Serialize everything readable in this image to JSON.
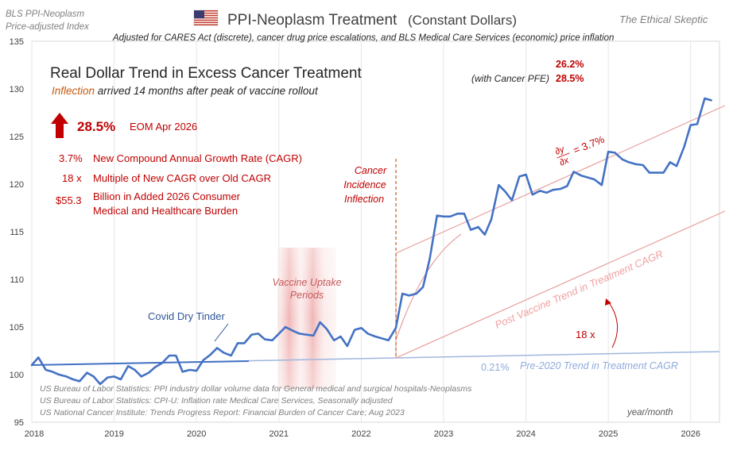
{
  "header": {
    "source_line1": "BLS PPI-Neoplasm",
    "source_line2": "Price-adjusted Index",
    "title": "PPI-Neoplasm Treatment",
    "title_suffix": "(Constant Dollars)",
    "brand": "The Ethical Skeptic",
    "subtitle": "Adjusted for CARES Act (discrete), cancer drug price escalations, and BLS Medical Care Services (economic) price inflation",
    "flag_icon": "us-flag-icon"
  },
  "panel": {
    "headline": "Real Dollar Trend in Excess Cancer Treatment",
    "inflection_word": "Inflection",
    "inflection_rest": " arrived 14 months after peak of vaccine rollout",
    "big_value": "28.5%",
    "big_label": "EOM Apr 2026",
    "stats": [
      {
        "value": "3.7%",
        "label": "New Compound Annual Growth Rate (CAGR)"
      },
      {
        "value": "18 x",
        "label": "Multiple of New CAGR over Old CAGR"
      },
      {
        "value": "$55.3",
        "label": "Billion in Added 2026 Consumer"
      }
    ],
    "stats_cont": "Medical and Healthcare Burden",
    "top_right_value1": "26.2%",
    "top_right_label2": "(with Cancer PFE)",
    "top_right_value2": "28.5%"
  },
  "colors": {
    "series": "#4472c4",
    "accent_red": "#c00000",
    "trend_light": "#e8a0a0",
    "old_trend": "#9fb7de",
    "inflection": "#c55a11"
  },
  "chart_data": {
    "type": "line",
    "title": "PPI-Neoplasm Treatment (Constant Dollars)",
    "xlabel": "year/month",
    "ylabel": "",
    "xlim": [
      2018.0,
      2026.35
    ],
    "ylim": [
      95,
      135
    ],
    "yticks": [
      95,
      100,
      105,
      110,
      115,
      120,
      125,
      130,
      135
    ],
    "xticks": [
      "2018",
      "2019",
      "2020",
      "2021",
      "2022",
      "2023",
      "2024",
      "2025",
      "2026"
    ],
    "grid": "vertical",
    "series": [
      {
        "x": [
          2018.0,
          2018.08,
          2018.17,
          2018.25,
          2018.33,
          2018.42,
          2018.5,
          2018.58,
          2018.67,
          2018.75,
          2018.83,
          2018.92,
          2019.0,
          2019.08,
          2019.17,
          2019.25,
          2019.33,
          2019.42,
          2019.5,
          2019.58,
          2019.67,
          2019.75,
          2019.83,
          2019.92,
          2020.0,
          2020.08,
          2020.17,
          2020.25,
          2020.33,
          2020.42,
          2020.5,
          2020.58,
          2020.67,
          2020.75,
          2020.83,
          2020.92,
          2021.0,
          2021.08,
          2021.17,
          2021.25,
          2021.33,
          2021.42,
          2021.5,
          2021.58,
          2021.67,
          2021.75,
          2021.83,
          2021.92,
          2022.0,
          2022.08,
          2022.17,
          2022.25,
          2022.33,
          2022.42,
          2022.5,
          2022.58,
          2022.67,
          2022.75,
          2022.83,
          2022.92,
          2023.0,
          2023.08,
          2023.17,
          2023.25,
          2023.33,
          2023.42,
          2023.5,
          2023.58,
          2023.67,
          2023.75,
          2023.83,
          2023.92,
          2024.0,
          2024.08,
          2024.17,
          2024.25,
          2024.33,
          2024.42,
          2024.5,
          2024.58,
          2024.67,
          2024.75,
          2024.83,
          2024.92,
          2025.0,
          2025.08,
          2025.17,
          2025.25,
          2025.33,
          2025.42,
          2025.5,
          2025.58,
          2025.67,
          2025.75,
          2025.83,
          2025.92,
          2026.0,
          2026.08,
          2026.17,
          2026.25
        ],
        "values": [
          101.0,
          101.8,
          100.5,
          100.3,
          100.0,
          99.8,
          99.5,
          99.3,
          100.2,
          99.8,
          99.0,
          99.7,
          99.8,
          99.5,
          100.9,
          100.5,
          99.8,
          100.2,
          100.8,
          101.2,
          102.0,
          102.0,
          100.3,
          100.5,
          100.4,
          101.5,
          102.1,
          102.8,
          102.3,
          102.0,
          103.3,
          103.3,
          104.2,
          104.3,
          103.7,
          103.6,
          104.3,
          105.0,
          104.6,
          104.3,
          104.2,
          104.1,
          105.5,
          104.8,
          103.6,
          104.0,
          103.0,
          104.7,
          104.9,
          104.3,
          104.0,
          103.8,
          103.6,
          104.9,
          108.5,
          108.3,
          108.5,
          109.2,
          112.1,
          116.7,
          116.6,
          116.6,
          116.9,
          116.9,
          115.2,
          115.5,
          114.7,
          116.3,
          119.9,
          119.2,
          118.3,
          120.8,
          121.0,
          118.9,
          119.3,
          119.1,
          119.4,
          119.5,
          119.8,
          121.3,
          120.9,
          120.7,
          120.5,
          119.9,
          123.4,
          123.3,
          122.6,
          122.3,
          122.1,
          122.0,
          121.2,
          121.2,
          121.2,
          122.3,
          121.9,
          123.9,
          126.2,
          126.3,
          129.0,
          128.8
        ]
      }
    ],
    "annotations": [
      "Covid Dry Tinder",
      "Vaccine Uptake Periods",
      "Cancer Incidence Inflection",
      "Post Vaccine Trend in Treatment CAGR",
      "0.21%",
      "Pre-2020 Trend in Treatment CAGR",
      "18 x",
      "∂y/∂x = 3.7%"
    ],
    "sources": [
      "US Bureau of Labor Statistics: PPI industry dollar volume data for General medical and surgical hospitals-Neoplasms",
      "US Bureau of Labor Statistics: CPI-U: Inflation rate Medical Care Services, Seasonally adjusted",
      "US National Cancer Institute: Trends Progress Report: Financial Burden of Cancer Care; Aug 2023"
    ]
  }
}
